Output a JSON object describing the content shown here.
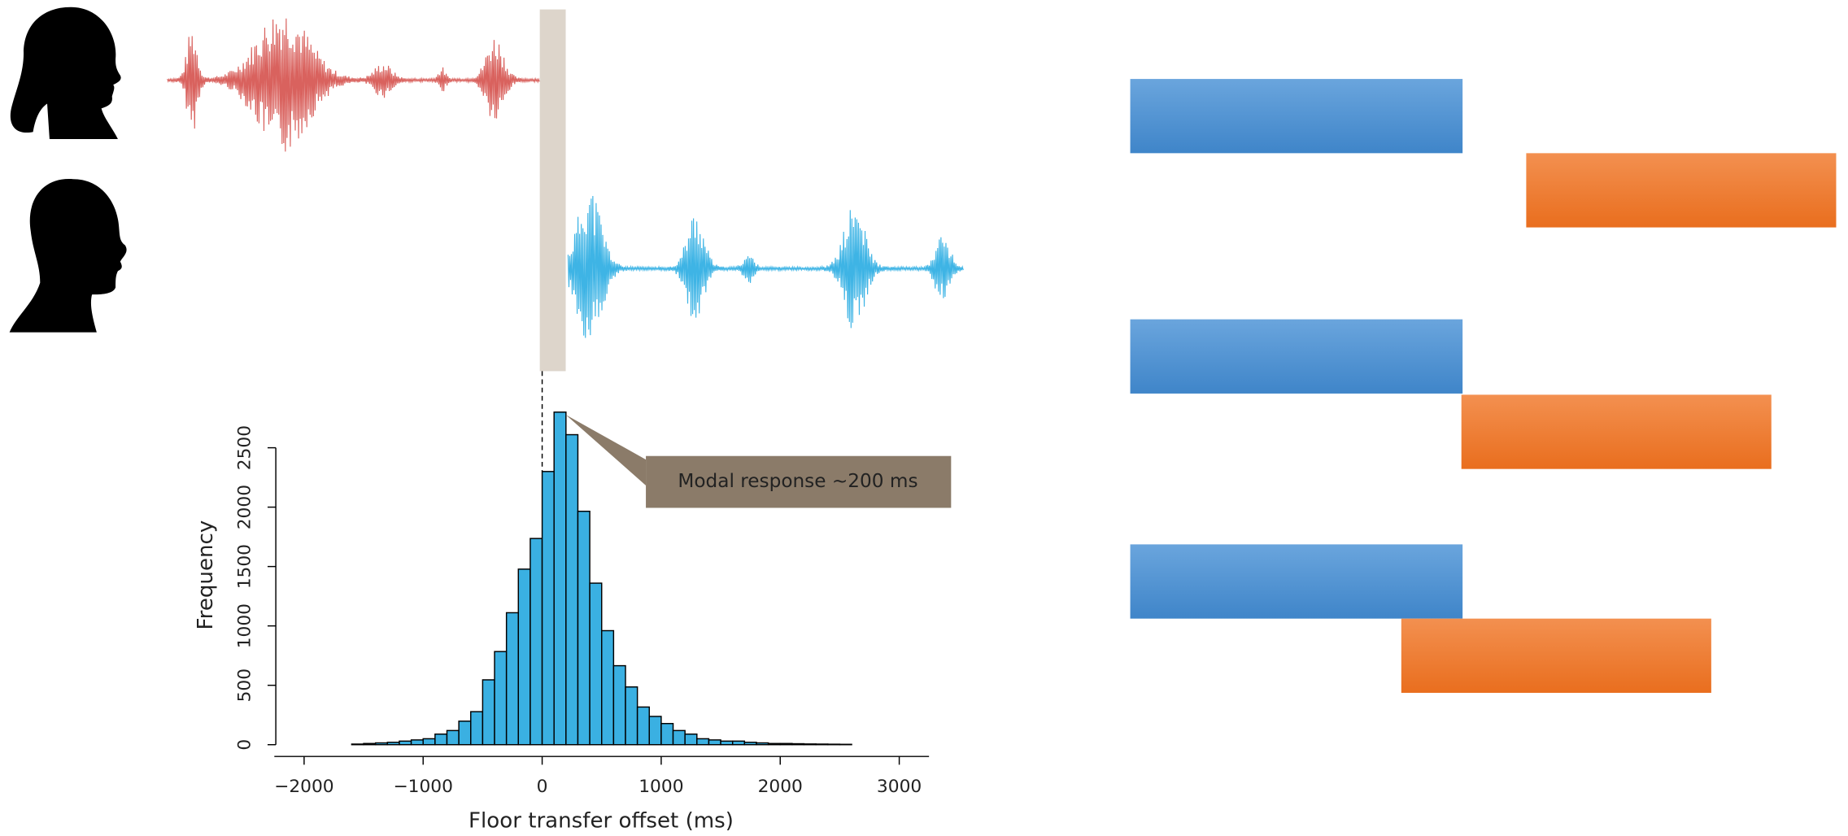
{
  "chart_data": {
    "type": "histogram",
    "annotation": "Modal response ~200 ms",
    "xlabel": "Floor transfer offset (ms)",
    "ylabel": "Frequency",
    "bins": [
      -1600,
      -1500,
      -1400,
      -1300,
      -1200,
      -1100,
      -1000,
      -900,
      -800,
      -700,
      -600,
      -500,
      -400,
      -300,
      -200,
      -100,
      0,
      100,
      200,
      300,
      400,
      500,
      600,
      700,
      800,
      900,
      1000,
      1100,
      1200,
      1300,
      1400,
      1500,
      1600,
      1700,
      1800,
      1900,
      2000,
      2100,
      2200,
      2300,
      2400,
      2500,
      2600
    ],
    "values": [
      5,
      10,
      15,
      20,
      30,
      40,
      50,
      89,
      119,
      198,
      278,
      546,
      784,
      1111,
      1478,
      1736,
      2300,
      2800,
      2610,
      1965,
      1360,
      960,
      665,
      486,
      317,
      238,
      178,
      119,
      89,
      50,
      40,
      30,
      30,
      20,
      15,
      10,
      10,
      8,
      6,
      5,
      4,
      3
    ],
    "color": "#3ab0e2",
    "xlim": [
      -2250,
      3250
    ],
    "xticks": [
      {
        "value": -2000,
        "label": "−2000"
      },
      {
        "value": -1000,
        "label": "−1000"
      },
      0,
      1000,
      2000,
      3000
    ],
    "ylim": [
      0,
      2800
    ],
    "yticks": [
      0,
      500,
      1000,
      1500,
      2000,
      2500
    ]
  }
}
